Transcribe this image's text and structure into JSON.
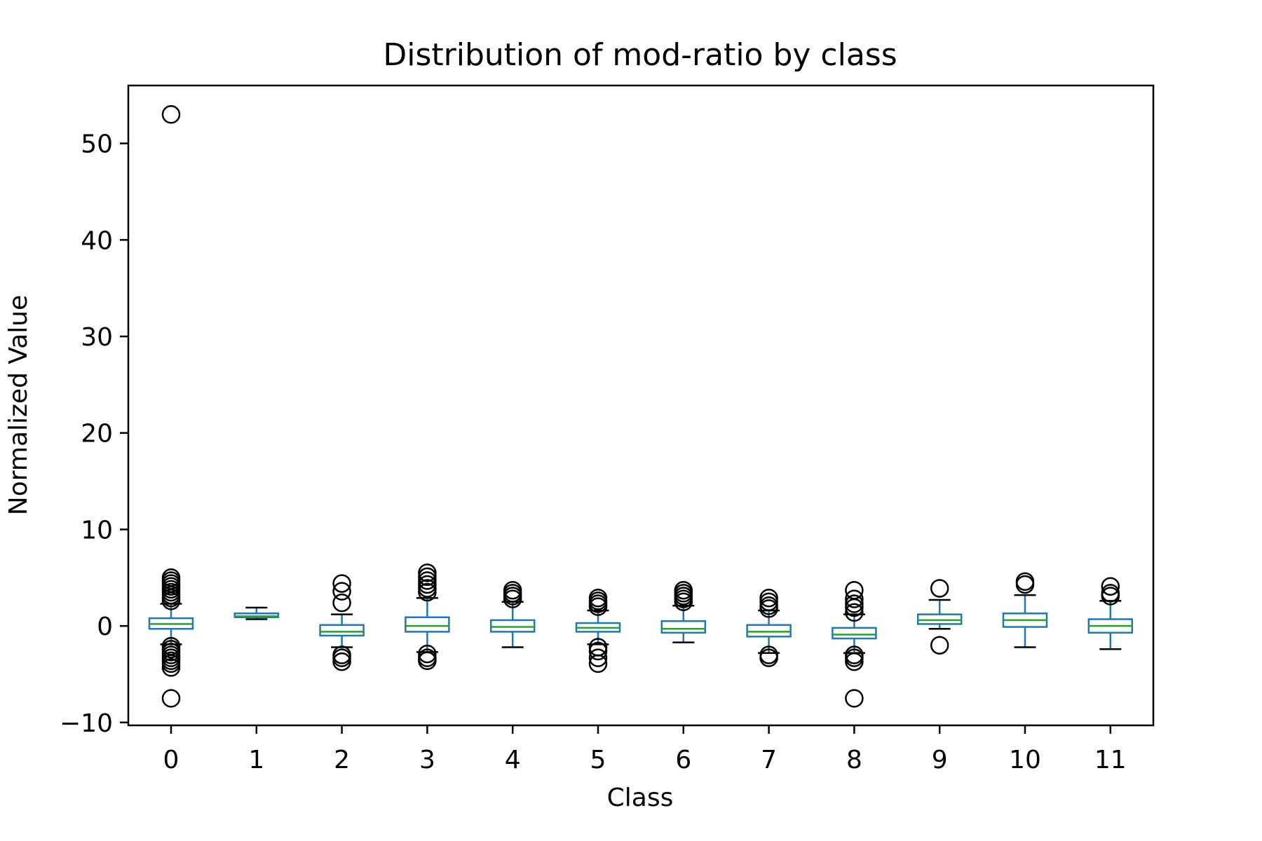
{
  "chart_data": {
    "type": "boxplot",
    "title": "Distribution of mod-ratio by class",
    "xlabel": "Class",
    "ylabel": "Normalized Value",
    "ylim": [
      -10.3,
      56.0
    ],
    "yticks": [
      -10,
      0,
      10,
      20,
      30,
      40,
      50
    ],
    "ytick_labels": [
      "−10",
      "0",
      "10",
      "20",
      "30",
      "40",
      "50"
    ],
    "grid": false,
    "legend": "none",
    "colors": {
      "box": "#1f77b4",
      "median": "#2ca02c",
      "whisker_cap": "#000000",
      "flier": "#000000"
    },
    "categories": [
      "0",
      "1",
      "2",
      "3",
      "4",
      "5",
      "6",
      "7",
      "8",
      "9",
      "10",
      "11"
    ],
    "boxes": [
      {
        "class": "0",
        "whislo": -1.9,
        "q1": -0.3,
        "med": 0.2,
        "q3": 0.8,
        "whishi": 2.3,
        "fliers": [
          53.0,
          5.0,
          4.7,
          4.4,
          4.1,
          3.8,
          3.5,
          3.2,
          2.9,
          2.6,
          -2.1,
          -2.4,
          -2.7,
          -3.0,
          -3.3,
          -3.6,
          -3.9,
          -4.3,
          -7.5
        ]
      },
      {
        "class": "1",
        "whislo": 0.7,
        "q1": 0.9,
        "med": 1.0,
        "q3": 1.3,
        "whishi": 1.9,
        "fliers": []
      },
      {
        "class": "2",
        "whislo": -2.2,
        "q1": -1.0,
        "med": -0.6,
        "q3": 0.1,
        "whishi": 1.2,
        "fliers": [
          4.4,
          3.6,
          2.4,
          -3.0,
          -3.3,
          -3.7
        ]
      },
      {
        "class": "3",
        "whislo": -2.7,
        "q1": -0.6,
        "med": 0.0,
        "q3": 0.9,
        "whishi": 2.9,
        "fliers": [
          5.5,
          5.1,
          4.7,
          4.3,
          3.9,
          3.5,
          -2.9,
          -3.3,
          -3.6
        ]
      },
      {
        "class": "4",
        "whislo": -2.2,
        "q1": -0.6,
        "med": -0.1,
        "q3": 0.6,
        "whishi": 2.5,
        "fliers": [
          3.7,
          3.4,
          3.1,
          2.8
        ]
      },
      {
        "class": "5",
        "whislo": -1.9,
        "q1": -0.6,
        "med": -0.2,
        "q3": 0.3,
        "whishi": 1.6,
        "fliers": [
          2.9,
          2.6,
          2.3,
          2.0,
          -2.2,
          -2.6,
          -3.3,
          -3.9
        ]
      },
      {
        "class": "6",
        "whislo": -1.7,
        "q1": -0.7,
        "med": -0.3,
        "q3": 0.5,
        "whishi": 2.1,
        "fliers": [
          3.7,
          3.4,
          3.1,
          2.8,
          2.5
        ]
      },
      {
        "class": "7",
        "whislo": -2.8,
        "q1": -1.1,
        "med": -0.6,
        "q3": 0.1,
        "whishi": 1.6,
        "fliers": [
          2.9,
          2.5,
          2.1,
          1.8,
          -3.0,
          -3.3
        ]
      },
      {
        "class": "8",
        "whislo": -2.8,
        "q1": -1.3,
        "med": -0.9,
        "q3": -0.2,
        "whishi": 1.2,
        "fliers": [
          3.7,
          2.8,
          2.3,
          1.9,
          1.4,
          -3.0,
          -3.3,
          -3.7,
          -7.5
        ]
      },
      {
        "class": "9",
        "whislo": -0.3,
        "q1": 0.2,
        "med": 0.6,
        "q3": 1.2,
        "whishi": 2.7,
        "fliers": [
          3.9,
          -2.0
        ]
      },
      {
        "class": "10",
        "whislo": -2.2,
        "q1": -0.1,
        "med": 0.6,
        "q3": 1.3,
        "whishi": 3.2,
        "fliers": [
          4.6,
          4.3
        ]
      },
      {
        "class": "11",
        "whislo": -2.4,
        "q1": -0.7,
        "med": 0.0,
        "q3": 0.7,
        "whishi": 2.6,
        "fliers": [
          4.1,
          3.4,
          3.1
        ]
      }
    ]
  }
}
